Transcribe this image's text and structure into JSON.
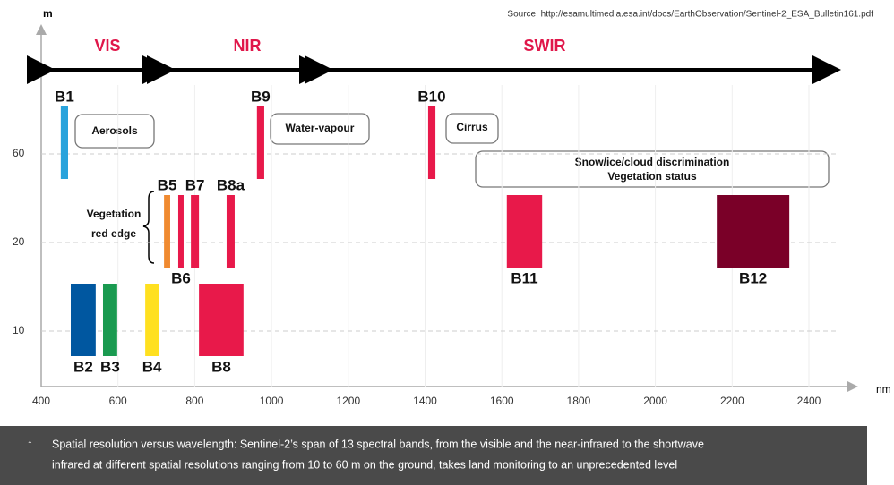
{
  "chart_data": {
    "type": "band",
    "source": "Source: http://esamultimedia.esa.int/docs/EarthObservation/Sentinel-2_ESA_Bulletin161.pdf",
    "x_label": "nm",
    "y_label": "m",
    "xlim": [
      400,
      2500
    ],
    "xticks": [
      400,
      600,
      800,
      1000,
      1200,
      1400,
      1600,
      1800,
      2000,
      2200,
      2400
    ],
    "y_categories": [
      "10",
      "20",
      "60"
    ],
    "regions": [
      "VIS",
      "NIR",
      "SWIR"
    ],
    "bands": [
      {
        "name": "B1",
        "start": 451,
        "end": 470,
        "resolution": 60,
        "color": "#29a3dc"
      },
      {
        "name": "B2",
        "start": 477,
        "end": 542,
        "resolution": 10,
        "color": "#0057a0"
      },
      {
        "name": "B3",
        "start": 561,
        "end": 598,
        "resolution": 10,
        "color": "#1a9a50"
      },
      {
        "name": "B4",
        "start": 671,
        "end": 706,
        "resolution": 10,
        "color": "#ffe020"
      },
      {
        "name": "B5",
        "start": 720,
        "end": 736,
        "resolution": 20,
        "color": "#f08a30"
      },
      {
        "name": "B6",
        "start": 757,
        "end": 771,
        "resolution": 20,
        "color": "#e8194a"
      },
      {
        "name": "B7",
        "start": 790,
        "end": 811,
        "resolution": 20,
        "color": "#e8194a"
      },
      {
        "name": "B8",
        "start": 811,
        "end": 927,
        "resolution": 10,
        "color": "#e8194a"
      },
      {
        "name": "B8a",
        "start": 883,
        "end": 904,
        "resolution": 20,
        "color": "#e8194a"
      },
      {
        "name": "B9",
        "start": 962,
        "end": 981,
        "resolution": 60,
        "color": "#e8194a"
      },
      {
        "name": "B10",
        "start": 1408,
        "end": 1427,
        "resolution": 60,
        "color": "#e8194a"
      },
      {
        "name": "B11",
        "start": 1613,
        "end": 1705,
        "resolution": 20,
        "color": "#e8194a"
      },
      {
        "name": "B12",
        "start": 2160,
        "end": 2349,
        "resolution": 20,
        "color": "#7a0028"
      }
    ],
    "callouts": [
      "Aerosols",
      "Water-vapour",
      "Cirrus",
      "Snow/ice/cloud discrimination",
      "Vegetation status"
    ],
    "red_edge": [
      "Vegetation",
      "red edge"
    ],
    "caption": [
      "Spatial resolution versus wavelength: Sentinel-2’s span of 13 spectral bands, from the visible and the near-infrared to the shortwave",
      "infrared at different spatial resolutions ranging from 10 to 60 m on the ground, takes land monitoring to an unprecedented level"
    ]
  }
}
